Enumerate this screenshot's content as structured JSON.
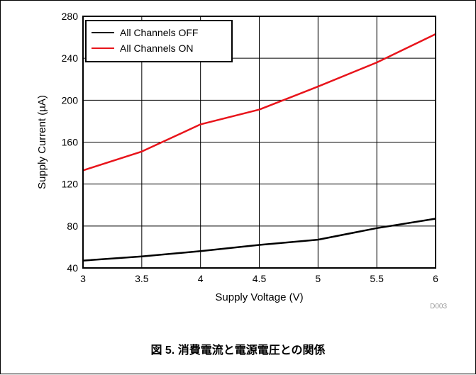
{
  "caption": "図 5. 消費電流と電源電圧との関係",
  "chart_data": {
    "type": "line",
    "xlabel": "Supply Voltage (V)",
    "ylabel": "Supply Current (µA)",
    "xlim": [
      3,
      6
    ],
    "ylim": [
      40,
      280
    ],
    "x_ticks": [
      "3",
      "3.5",
      "4",
      "4.5",
      "5",
      "5.5",
      "6"
    ],
    "y_ticks": [
      "40",
      "80",
      "120",
      "160",
      "200",
      "240",
      "280"
    ],
    "grid": true,
    "legend_position": "top-left",
    "plot_id": "D003",
    "series": [
      {
        "name": "All Channels OFF",
        "color": "#000000",
        "x": [
          3,
          3.5,
          4,
          4.5,
          5,
          5.5,
          6
        ],
        "y": [
          47,
          51,
          56,
          62,
          67,
          78,
          87
        ]
      },
      {
        "name": "All Channels ON",
        "color": "#e8141b",
        "x": [
          3,
          3.5,
          4,
          4.5,
          5,
          5.5,
          6
        ],
        "y": [
          133,
          151,
          177,
          191,
          213,
          236,
          263
        ]
      }
    ]
  }
}
